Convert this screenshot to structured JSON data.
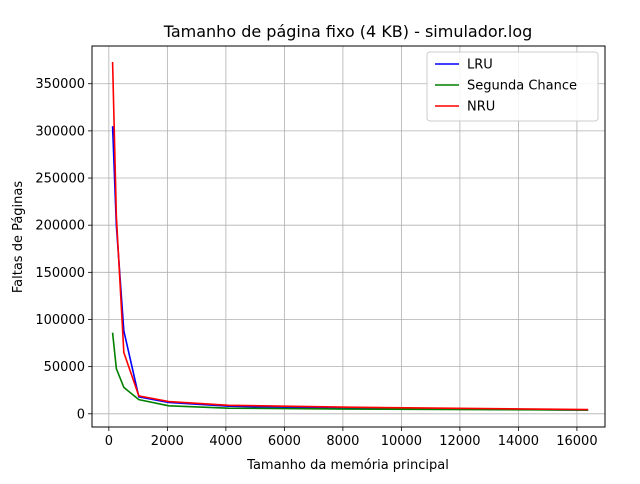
{
  "chart_data": {
    "type": "line",
    "title": "Tamanho de página fixo (4 KB) - simulador.log",
    "xlabel": "Tamanho da memória principal",
    "ylabel": "Faltas de Páginas",
    "xlim": [
      -576,
      16960
    ],
    "ylim": [
      -14000,
      390000
    ],
    "xticks": [
      0,
      2000,
      4000,
      6000,
      8000,
      10000,
      12000,
      14000,
      16000
    ],
    "yticks": [
      0,
      50000,
      100000,
      150000,
      200000,
      250000,
      300000,
      350000
    ],
    "grid": true,
    "legend_position": "top-right",
    "series": [
      {
        "name": "LRU",
        "color": "#0000ff",
        "x": [
          128,
          256,
          512,
          1024,
          2048,
          4096,
          8192,
          16384
        ],
        "y": [
          305000,
          200000,
          88000,
          18000,
          12000,
          8000,
          6000,
          4000
        ]
      },
      {
        "name": "Segunda Chance",
        "color": "#008000",
        "x": [
          128,
          256,
          512,
          1024,
          2048,
          4096,
          8192,
          16384
        ],
        "y": [
          86000,
          48000,
          28000,
          15000,
          8500,
          6000,
          5000,
          4000
        ]
      },
      {
        "name": "NRU",
        "color": "#ff0000",
        "x": [
          128,
          256,
          512,
          1024,
          2048,
          4096,
          8192,
          16384
        ],
        "y": [
          373000,
          210000,
          65000,
          19000,
          13000,
          9000,
          7000,
          4500
        ]
      }
    ]
  }
}
